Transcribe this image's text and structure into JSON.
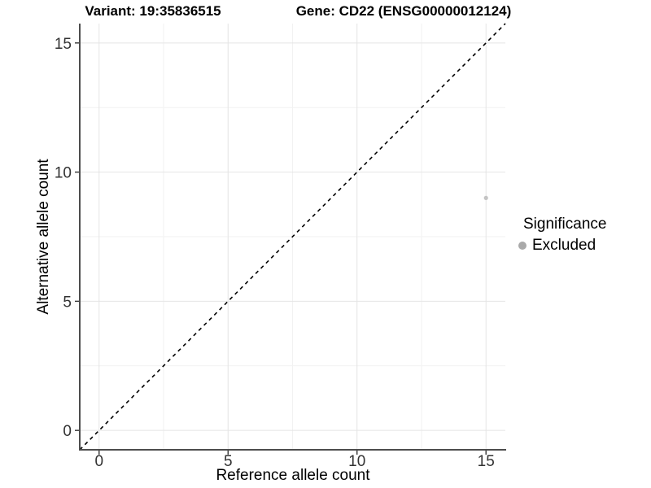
{
  "chart_data": {
    "type": "scatter",
    "titles": {
      "variant": "Variant: 19:35836515",
      "gene": "Gene: CD22 (ENSG00000012124)"
    },
    "xlabel": "Reference allele count",
    "ylabel": "Alternative allele count",
    "x_ticks": [
      0,
      5,
      10,
      15
    ],
    "y_ticks": [
      0,
      5,
      10,
      15
    ],
    "xlim": [
      -0.75,
      15.75
    ],
    "ylim": [
      -0.75,
      15.75
    ],
    "grid": "major and minor gridlines, light gray on white panel",
    "identity_line": {
      "style": "dashed",
      "equation": "y = x",
      "color": "#000000"
    },
    "points": [
      {
        "x": 15,
        "y": 9,
        "series": "Excluded",
        "color": "#C4C4C4",
        "radius": 2.6
      }
    ],
    "legend": {
      "title": "Significance",
      "position": "right",
      "items": [
        {
          "label": "Excluded",
          "color": "#A9A9A9"
        }
      ]
    },
    "colors": {
      "grid_major": "#E4E4E4",
      "grid_minor": "#F2F2F2",
      "axis_line": "#4D4D4D",
      "tick_mark": "#333333",
      "tick_label": "#333333",
      "title_text": "#000000"
    }
  }
}
